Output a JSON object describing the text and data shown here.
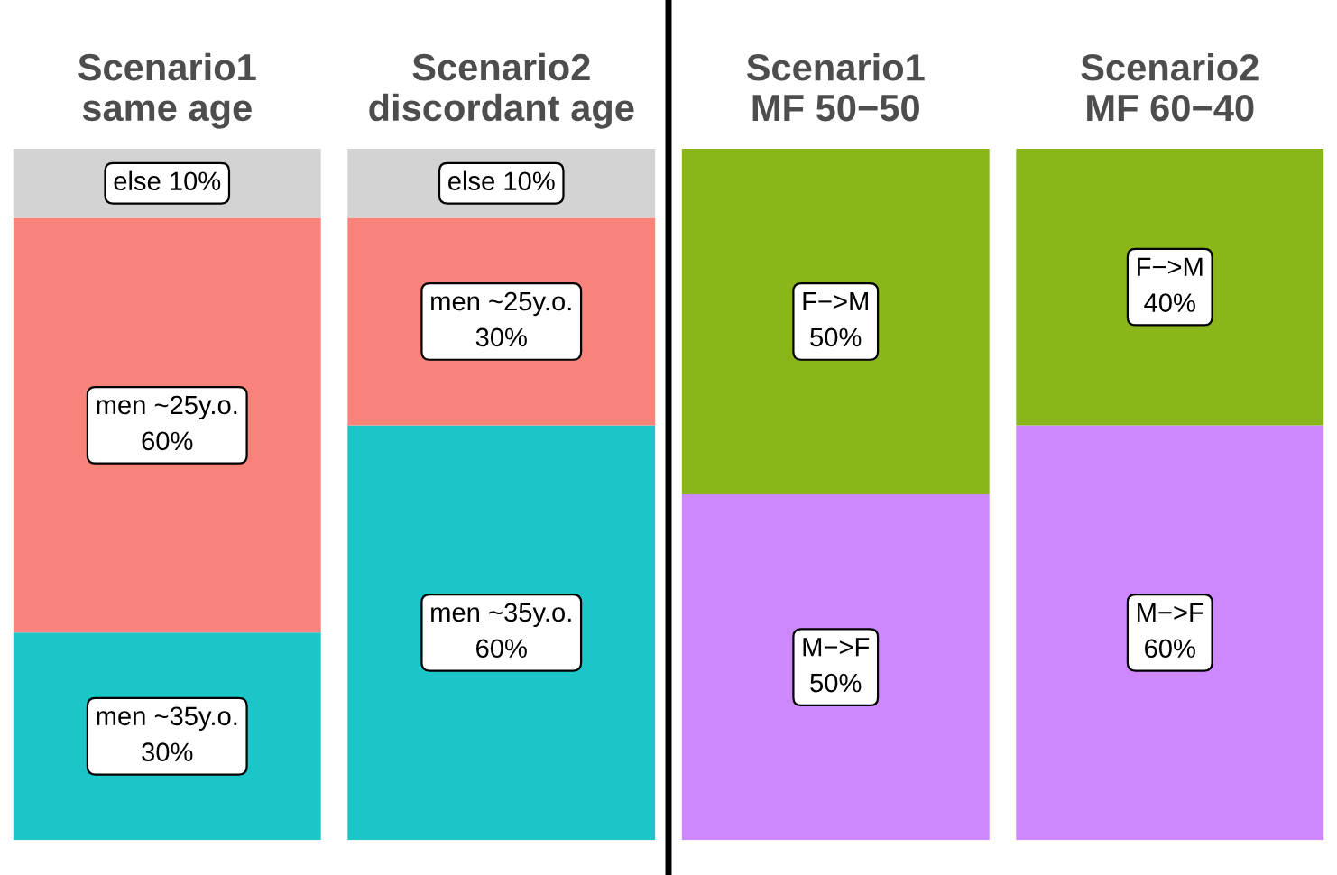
{
  "chart_data": {
    "type": "bar",
    "stacked": true,
    "categories": [
      "Scenario1\nsame age",
      "Scenario2\ndiscordant age",
      "Scenario1\nMF 50−50",
      "Scenario2\nMF 60−40"
    ],
    "ylim": [
      0,
      100
    ],
    "series": [
      {
        "values": [
          30,
          60,
          50,
          60
        ],
        "colors": [
          "#1cc5c8",
          "#1cc5c8",
          "#cc88fc",
          "#cc88fc"
        ],
        "value_labels": [
          "men ~35y.o.\n30%",
          "men ~35y.o.\n60%",
          "M−>F\n50%",
          "M−>F\n60%"
        ]
      },
      {
        "values": [
          60,
          30,
          50,
          40
        ],
        "colors": [
          "#f8837a",
          "#f8837a",
          "#8ab61a",
          "#8ab61a"
        ],
        "value_labels": [
          "men ~25y.o.\n60%",
          "men ~25y.o.\n30%",
          "F−>M\n50%",
          "F−>M\n40%"
        ]
      },
      {
        "values": [
          10,
          10,
          null,
          null
        ],
        "colors": [
          "#d3d3d3",
          "#d3d3d3",
          "#d3d3d3",
          "#d3d3d3"
        ],
        "value_labels": [
          "else 10%",
          "else 10%",
          null,
          null
        ]
      }
    ]
  }
}
